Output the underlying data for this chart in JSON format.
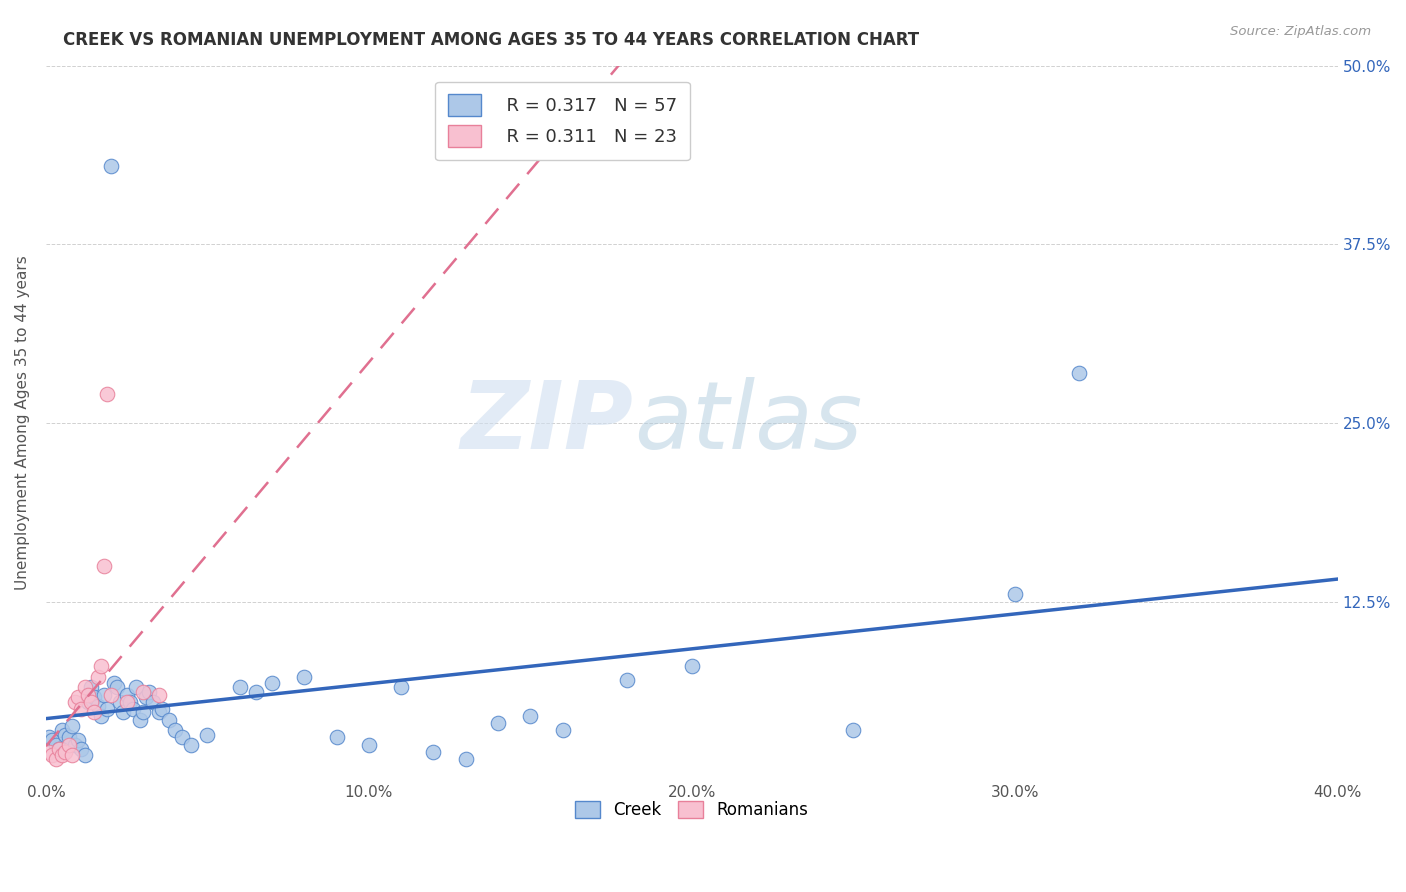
{
  "title": "CREEK VS ROMANIAN UNEMPLOYMENT AMONG AGES 35 TO 44 YEARS CORRELATION CHART",
  "source": "Source: ZipAtlas.com",
  "ylabel": "Unemployment Among Ages 35 to 44 years",
  "xlim": [
    0.0,
    0.4
  ],
  "ylim": [
    0.0,
    0.5
  ],
  "xticks": [
    0.0,
    0.1,
    0.2,
    0.3,
    0.4
  ],
  "yticks": [
    0.0,
    0.125,
    0.25,
    0.375,
    0.5
  ],
  "xticklabels": [
    "0.0%",
    "10.0%",
    "20.0%",
    "30.0%",
    "40.0%"
  ],
  "yticklabels_right": [
    "",
    "12.5%",
    "25.0%",
    "37.5%",
    "50.0%"
  ],
  "creek_color": "#adc8e8",
  "creek_edge_color": "#5588cc",
  "creek_line_color": "#3366bb",
  "romanian_color": "#f8c0d0",
  "romanian_edge_color": "#e8809a",
  "romanian_line_color": "#e07090",
  "legend_creek_R": "0.317",
  "legend_creek_N": "57",
  "legend_romanian_R": "0.311",
  "legend_romanian_N": "23",
  "creek_points": [
    [
      0.001,
      0.03
    ],
    [
      0.002,
      0.028
    ],
    [
      0.003,
      0.025
    ],
    [
      0.004,
      0.022
    ],
    [
      0.005,
      0.035
    ],
    [
      0.006,
      0.032
    ],
    [
      0.007,
      0.03
    ],
    [
      0.008,
      0.038
    ],
    [
      0.009,
      0.025
    ],
    [
      0.01,
      0.028
    ],
    [
      0.011,
      0.022
    ],
    [
      0.012,
      0.018
    ],
    [
      0.013,
      0.055
    ],
    [
      0.014,
      0.065
    ],
    [
      0.015,
      0.058
    ],
    [
      0.016,
      0.052
    ],
    [
      0.017,
      0.045
    ],
    [
      0.018,
      0.06
    ],
    [
      0.019,
      0.05
    ],
    [
      0.02,
      0.43
    ],
    [
      0.021,
      0.068
    ],
    [
      0.022,
      0.065
    ],
    [
      0.023,
      0.055
    ],
    [
      0.024,
      0.048
    ],
    [
      0.025,
      0.06
    ],
    [
      0.026,
      0.055
    ],
    [
      0.027,
      0.05
    ],
    [
      0.028,
      0.065
    ],
    [
      0.029,
      0.042
    ],
    [
      0.03,
      0.048
    ],
    [
      0.031,
      0.058
    ],
    [
      0.032,
      0.062
    ],
    [
      0.033,
      0.055
    ],
    [
      0.035,
      0.048
    ],
    [
      0.036,
      0.05
    ],
    [
      0.038,
      0.042
    ],
    [
      0.04,
      0.035
    ],
    [
      0.042,
      0.03
    ],
    [
      0.045,
      0.025
    ],
    [
      0.05,
      0.032
    ],
    [
      0.06,
      0.065
    ],
    [
      0.065,
      0.062
    ],
    [
      0.07,
      0.068
    ],
    [
      0.08,
      0.072
    ],
    [
      0.09,
      0.03
    ],
    [
      0.1,
      0.025
    ],
    [
      0.11,
      0.065
    ],
    [
      0.12,
      0.02
    ],
    [
      0.13,
      0.015
    ],
    [
      0.14,
      0.04
    ],
    [
      0.15,
      0.045
    ],
    [
      0.16,
      0.035
    ],
    [
      0.18,
      0.07
    ],
    [
      0.2,
      0.08
    ],
    [
      0.25,
      0.035
    ],
    [
      0.3,
      0.13
    ],
    [
      0.32,
      0.285
    ]
  ],
  "romanian_points": [
    [
      0.001,
      0.02
    ],
    [
      0.002,
      0.018
    ],
    [
      0.003,
      0.015
    ],
    [
      0.004,
      0.022
    ],
    [
      0.005,
      0.018
    ],
    [
      0.006,
      0.02
    ],
    [
      0.007,
      0.025
    ],
    [
      0.008,
      0.018
    ],
    [
      0.009,
      0.055
    ],
    [
      0.01,
      0.058
    ],
    [
      0.011,
      0.05
    ],
    [
      0.012,
      0.065
    ],
    [
      0.013,
      0.06
    ],
    [
      0.014,
      0.055
    ],
    [
      0.015,
      0.048
    ],
    [
      0.016,
      0.072
    ],
    [
      0.017,
      0.08
    ],
    [
      0.018,
      0.15
    ],
    [
      0.019,
      0.27
    ],
    [
      0.02,
      0.06
    ],
    [
      0.025,
      0.055
    ],
    [
      0.03,
      0.062
    ],
    [
      0.035,
      0.06
    ]
  ],
  "watermark_zip": "ZIP",
  "watermark_atlas": "atlas",
  "background_color": "#ffffff",
  "grid_color": "#cccccc"
}
